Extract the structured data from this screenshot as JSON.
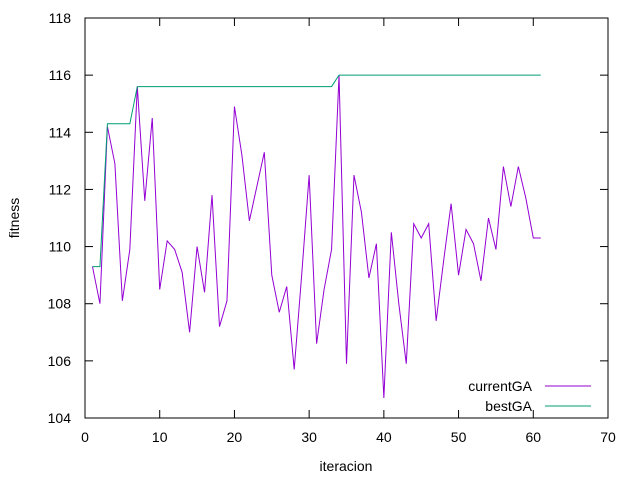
{
  "chart_data": {
    "type": "line",
    "title": "",
    "xlabel": "iteracion",
    "ylabel": "fitness",
    "xlim": [
      0,
      70
    ],
    "ylim": [
      104,
      118
    ],
    "xticks": [
      0,
      10,
      20,
      30,
      40,
      50,
      60,
      70
    ],
    "yticks": [
      104,
      106,
      108,
      110,
      112,
      114,
      116,
      118
    ],
    "grid": false,
    "legend_position": "bottom-right",
    "x": [
      1,
      2,
      3,
      4,
      5,
      6,
      7,
      8,
      9,
      10,
      11,
      12,
      13,
      14,
      15,
      16,
      17,
      18,
      19,
      20,
      21,
      22,
      23,
      24,
      25,
      26,
      27,
      28,
      29,
      30,
      31,
      32,
      33,
      34,
      35,
      36,
      37,
      38,
      39,
      40,
      41,
      42,
      43,
      44,
      45,
      46,
      47,
      48,
      49,
      50,
      51,
      52,
      53,
      54,
      55,
      56,
      57,
      58,
      59,
      60,
      61
    ],
    "series": [
      {
        "name": "currentGA",
        "color": "#9400d3",
        "values": [
          109.3,
          108.0,
          114.2,
          112.9,
          108.1,
          109.9,
          115.6,
          111.6,
          114.5,
          108.5,
          110.2,
          109.9,
          109.1,
          107.0,
          110.0,
          108.4,
          111.8,
          107.2,
          108.1,
          114.9,
          113.2,
          110.9,
          112.1,
          113.3,
          109.0,
          107.7,
          108.6,
          105.7,
          109.0,
          112.5,
          106.6,
          108.5,
          109.9,
          116.0,
          105.9,
          112.5,
          111.2,
          108.9,
          110.1,
          104.7,
          110.5,
          108.0,
          105.9,
          110.8,
          110.3,
          110.8,
          107.4,
          109.5,
          111.5,
          109.0,
          110.6,
          110.1,
          108.8,
          111.0,
          109.9,
          112.8,
          111.4,
          112.8,
          111.7,
          110.3,
          110.3
        ]
      },
      {
        "name": "bestGA",
        "color": "#009e73",
        "values": [
          109.3,
          109.3,
          114.3,
          114.3,
          114.3,
          114.3,
          115.6,
          115.6,
          115.6,
          115.6,
          115.6,
          115.6,
          115.6,
          115.6,
          115.6,
          115.6,
          115.6,
          115.6,
          115.6,
          115.6,
          115.6,
          115.6,
          115.6,
          115.6,
          115.6,
          115.6,
          115.6,
          115.6,
          115.6,
          115.6,
          115.6,
          115.6,
          115.6,
          116.0,
          116.0,
          116.0,
          116.0,
          116.0,
          116.0,
          116.0,
          116.0,
          116.0,
          116.0,
          116.0,
          116.0,
          116.0,
          116.0,
          116.0,
          116.0,
          116.0,
          116.0,
          116.0,
          116.0,
          116.0,
          116.0,
          116.0,
          116.0,
          116.0,
          116.0,
          116.0,
          116.0
        ]
      }
    ]
  }
}
